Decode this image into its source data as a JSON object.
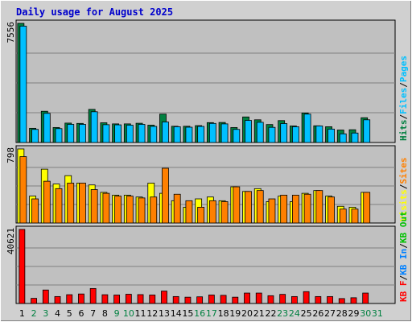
{
  "chart_data": {
    "type": "bar",
    "title": "Daily usage for August 2025",
    "categories": [
      "1",
      "2",
      "3",
      "4",
      "5",
      "6",
      "7",
      "8",
      "9",
      "10",
      "11",
      "12",
      "13",
      "14",
      "15",
      "16",
      "17",
      "18",
      "19",
      "20",
      "21",
      "22",
      "23",
      "24",
      "25",
      "26",
      "27",
      "28",
      "29",
      "30",
      "31"
    ],
    "weekend_days": [
      "2",
      "3",
      "9",
      "10",
      "16",
      "17",
      "23",
      "24",
      "30",
      "31"
    ],
    "colors": {
      "background": "#c0c0c0",
      "frame": "#d0d0d0",
      "hits": "#008040",
      "files": "#00c0ff",
      "sites": "#ff8000",
      "visits": "#ffff00",
      "kbf": "#ff0000",
      "kbin": "#0080ff",
      "kbout": "#00c000",
      "weekday_label": "#000000",
      "weekend_label": "#008040",
      "title": "#0000cc"
    },
    "panels": [
      {
        "ymax_label": "7556",
        "ymax": 7556,
        "series": [
          {
            "name": "Hits",
            "color": "#008040",
            "values": [
              7556,
              900,
              1980,
              950,
              1230,
              1210,
              2100,
              1250,
              1180,
              1180,
              1220,
              1100,
              1800,
              1030,
              1030,
              1070,
              1260,
              1270,
              950,
              1620,
              1440,
              1140,
              1390,
              1050,
              1870,
              1060,
              1000,
              790,
              810,
              1570,
              null
            ]
          },
          {
            "name": "Files",
            "color": "#00c0ff",
            "values": [
              7380,
              830,
              1850,
              880,
              1150,
              1150,
              1950,
              1130,
              1120,
              1100,
              1150,
              1020,
              1300,
              1000,
              970,
              1020,
              1210,
              1180,
              830,
              1400,
              1280,
              960,
              1200,
              1000,
              1800,
              1050,
              850,
              550,
              600,
              1440,
              null
            ]
          }
        ],
        "legend": [
          {
            "label": "Hits",
            "color": "#008040"
          },
          {
            "label": "Files",
            "color": "#00c0ff"
          },
          {
            "label": "Pages",
            "color": "#00c0ff"
          }
        ]
      },
      {
        "ymax_label": "798",
        "ymax": 798,
        "series": [
          {
            "name": "Visits",
            "color": "#ffff00",
            "values": [
              798,
              290,
              580,
              420,
              510,
              430,
              410,
              330,
              300,
              300,
              280,
              430,
              320,
              240,
              170,
              260,
              280,
              240,
              390,
              340,
              370,
              230,
              290,
              230,
              320,
              350,
              290,
              180,
              170,
              330,
              null
            ]
          },
          {
            "name": "Sites",
            "color": "#ff8000",
            "values": [
              715,
              260,
              450,
              370,
              430,
              430,
              360,
              320,
              290,
              290,
              270,
              280,
              590,
              310,
              240,
              170,
              240,
              230,
              390,
              340,
              350,
              260,
              300,
              300,
              310,
              350,
              280,
              150,
              150,
              330,
              null
            ]
          }
        ],
        "legend": [
          {
            "label": "Visits",
            "color": "#ffff00"
          },
          {
            "label": "Sites",
            "color": "#ff8000"
          }
        ]
      },
      {
        "ymax_label": "40621",
        "ymax": 40621,
        "series": [
          {
            "name": "KB F",
            "color": "#ff0000",
            "values": [
              40621,
              2820,
              7400,
              3810,
              4830,
              5220,
              8220,
              4810,
              4640,
              5080,
              4870,
              4660,
              6810,
              3810,
              3460,
              3660,
              4660,
              4480,
              3460,
              5720,
              5720,
              4280,
              5000,
              3810,
              6510,
              3810,
              3810,
              2700,
              3150,
              5720,
              null
            ]
          }
        ],
        "legend": [
          {
            "label": "KB F",
            "color": "#ff0000"
          },
          {
            "label": "KB In",
            "color": "#0080ff"
          },
          {
            "label": "KB Out",
            "color": "#00c000"
          }
        ]
      }
    ]
  }
}
